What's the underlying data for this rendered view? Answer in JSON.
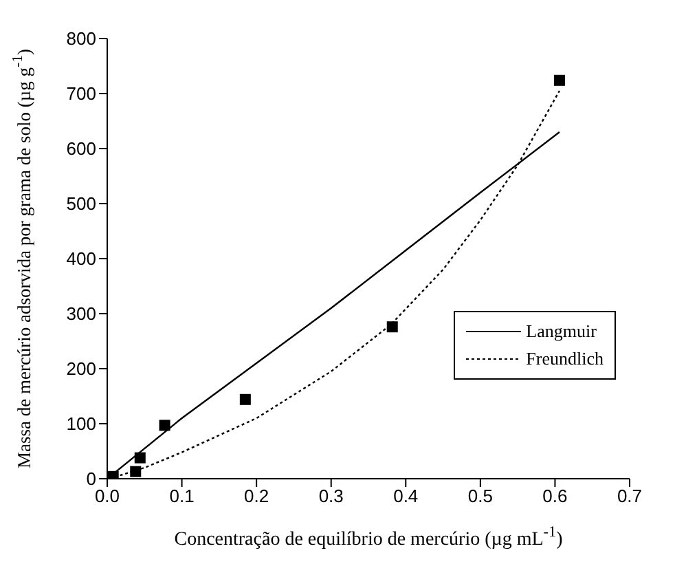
{
  "chart_data": {
    "type": "scatter",
    "xlabel": "Concentração de equilíbrio de mercúrio (µg mL$^{-1}$)",
    "ylabel": "Massa de mercúrio adsorvida por grama de solo (µg g$^{-1}$)",
    "xlim": [
      0,
      0.7
    ],
    "xticks": [
      {
        "value": 0,
        "label": "0.0"
      },
      {
        "value": 0.1,
        "label": "0.1"
      },
      {
        "value": 0.2,
        "label": "0.2"
      },
      {
        "value": 0.3,
        "label": "0.3"
      },
      {
        "value": 0.4,
        "label": "0.4"
      },
      {
        "value": 0.5,
        "label": "0.5"
      },
      {
        "value": 0.6,
        "label": "0.6"
      },
      {
        "value": 0.7,
        "label": "0.7"
      }
    ],
    "ylim": [
      0,
      800
    ],
    "yticks": [
      0,
      100,
      200,
      300,
      400,
      500,
      600,
      700,
      800
    ],
    "grid": false,
    "legend": "right",
    "series": [
      {
        "marker": "square",
        "color": "#000000",
        "x": [
          0.008,
          0.038,
          0.044,
          0.077,
          0.185,
          0.382,
          0.606
        ],
        "values": [
          4,
          13,
          38,
          97,
          144,
          276,
          724
        ]
      },
      {
        "type": "line",
        "name": "Langmuir",
        "color": "#000000",
        "line_style": "solid",
        "marker": "none",
        "x": [
          0,
          0.1,
          0.2,
          0.3,
          0.4,
          0.5,
          0.606
        ],
        "values": [
          0,
          110,
          210,
          310,
          415,
          520,
          630
        ]
      },
      {
        "type": "line",
        "name": "Freundlich",
        "color": "#000000",
        "line_style": "dotted",
        "marker": "none",
        "x": [
          0.003,
          0.05,
          0.1,
          0.2,
          0.3,
          0.38,
          0.45,
          0.5,
          0.55,
          0.606
        ],
        "values": [
          0,
          20,
          48,
          110,
          195,
          280,
          380,
          470,
          570,
          705
        ]
      }
    ]
  }
}
